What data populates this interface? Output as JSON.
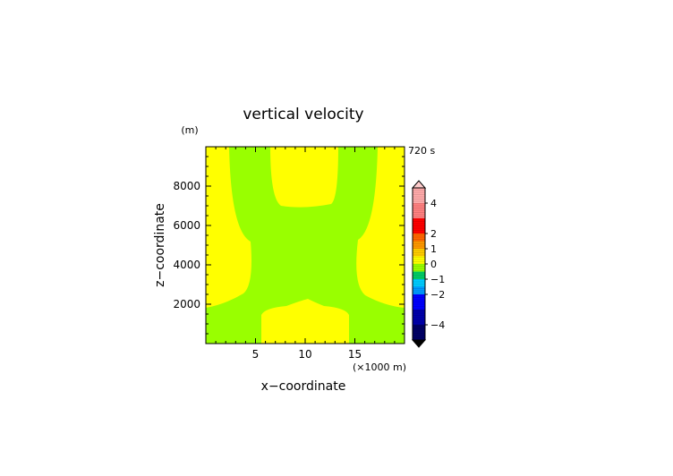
{
  "chart_data": {
    "type": "heatmap",
    "title": "vertical velocity",
    "time_label": "720 s",
    "xlabel": "x−coordinate",
    "ylabel": "z−coordinate",
    "x_unit": "(×1000 m)",
    "y_unit": "(m)",
    "xlim": [
      0,
      20
    ],
    "ylim": [
      0,
      10000
    ],
    "x_ticks": [
      5,
      10,
      15
    ],
    "y_ticks": [
      2000,
      4000,
      6000,
      8000
    ],
    "grid": false,
    "field_classes": {
      "positive_0_to_1": "#ffff00",
      "negative_minus1_to_0": "#99ff00"
    },
    "colorbar": {
      "labels": [
        {
          "value": 4,
          "text": "4"
        },
        {
          "value": 2,
          "text": "2"
        },
        {
          "value": 1,
          "text": "1"
        },
        {
          "value": 0,
          "text": "0"
        },
        {
          "value": -1,
          "text": "−1"
        },
        {
          "value": -2,
          "text": "−2"
        },
        {
          "value": -4,
          "text": "−4"
        }
      ],
      "over_color": "#ffcccc",
      "under_color": "#000000",
      "levels": [
        {
          "from": 4,
          "to": 5,
          "color": "#ffaaaa"
        },
        {
          "from": 3,
          "to": 4,
          "color": "#ff8080"
        },
        {
          "from": 2,
          "to": 3,
          "color": "#ff0000"
        },
        {
          "from": 1.5,
          "to": 2,
          "color": "#ff6600"
        },
        {
          "from": 1,
          "to": 1.5,
          "color": "#ff9900"
        },
        {
          "from": 0.5,
          "to": 1,
          "color": "#ffcc00"
        },
        {
          "from": 0,
          "to": 0.5,
          "color": "#ffff00"
        },
        {
          "from": -0.5,
          "to": 0,
          "color": "#99ff00"
        },
        {
          "from": -1,
          "to": -0.5,
          "color": "#00cc66"
        },
        {
          "from": -1.5,
          "to": -1,
          "color": "#00ccff"
        },
        {
          "from": -2,
          "to": -1.5,
          "color": "#0099ff"
        },
        {
          "from": -3,
          "to": -2,
          "color": "#0000ff"
        },
        {
          "from": -4,
          "to": -3,
          "color": "#0000aa"
        },
        {
          "from": -5,
          "to": -4,
          "color": "#000066"
        }
      ]
    }
  }
}
